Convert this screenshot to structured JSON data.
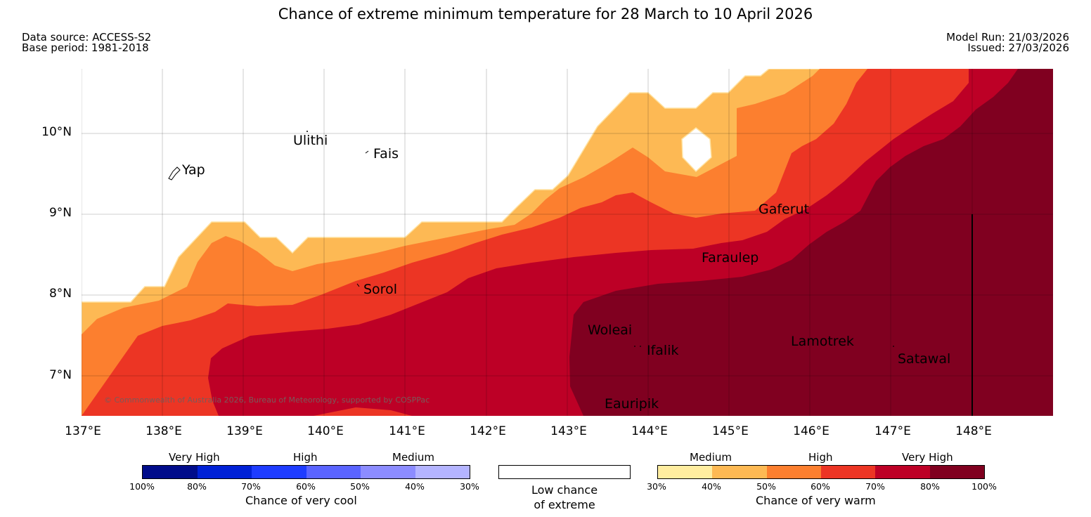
{
  "title": "Chance of extreme minimum temperature for 28 March to 10 April 2026",
  "meta": {
    "data_source": "Data source: ACCESS-S2",
    "base_period": "Base period: 1981-2018",
    "model_run": "Model Run: 21/03/2026",
    "issued": "Issued: 27/03/2026"
  },
  "map": {
    "lat_labels": [
      "10°N",
      "9°N",
      "8°N",
      "7°N"
    ],
    "lon_labels": [
      "137°E",
      "138°E",
      "139°E",
      "140°E",
      "141°E",
      "142°E",
      "143°E",
      "144°E",
      "145°E",
      "146°E",
      "147°E",
      "148°E"
    ],
    "places": [
      "Yap",
      "Ulithi",
      "Fais",
      "Gaferut",
      "Faraulep",
      "Sorol",
      "Woleai",
      "Ifalik",
      "Lamotrek",
      "Satawal",
      "Eauripik"
    ],
    "copyright": "© Commonwealth of Australia 2026, Bureau of Meteorology, supported by COSPPac"
  },
  "legend": {
    "cool": {
      "categories": [
        "Very High",
        "High",
        "Medium"
      ],
      "ticks": [
        "100%",
        "80%",
        "70%",
        "60%",
        "50%",
        "40%",
        "30%"
      ],
      "caption": "Chance of very cool",
      "colors": [
        "#000c8a",
        "#0021d6",
        "#1e3cff",
        "#5a64ff",
        "#8c8cff",
        "#b4b4ff"
      ]
    },
    "neutral": {
      "caption_line1": "Low chance",
      "caption_line2": "of extreme",
      "color": "#ffffff"
    },
    "warm": {
      "categories": [
        "Medium",
        "High",
        "Very High"
      ],
      "ticks": [
        "30%",
        "40%",
        "50%",
        "60%",
        "70%",
        "80%",
        "100%"
      ],
      "caption": "Chance of very warm",
      "colors": [
        "#ffeda0",
        "#fdb954",
        "#fc7f2f",
        "#ec3524",
        "#bd0026",
        "#800020"
      ]
    }
  }
}
